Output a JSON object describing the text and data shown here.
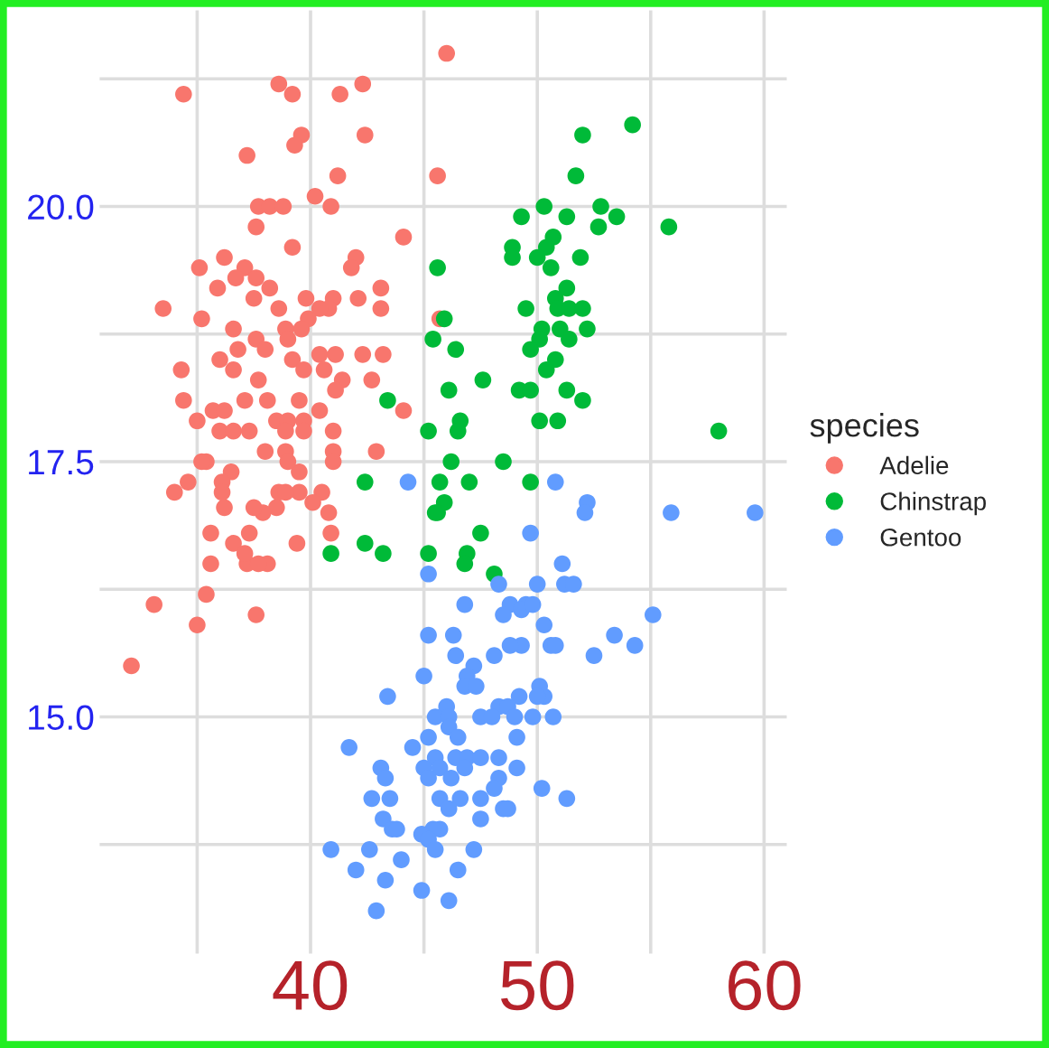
{
  "chart_data": {
    "type": "scatter",
    "legend_title": "species",
    "legend": "right",
    "marker": "circle",
    "grid": true,
    "xlim": [
      30.7,
      61.0
    ],
    "ylim": [
      12.68,
      21.92
    ],
    "xticks": [
      {
        "value": 35,
        "label": null
      },
      40,
      {
        "value": 45,
        "label": null
      },
      50,
      {
        "value": 55,
        "label": null
      },
      60
    ],
    "yticks": [
      {
        "value": 13.75,
        "label": null
      },
      {
        "value": 15,
        "label": "15.0"
      },
      {
        "value": 16.25,
        "label": null
      },
      {
        "value": 17.5,
        "label": "17.5"
      },
      {
        "value": 18.75,
        "label": null
      },
      {
        "value": 20,
        "label": "20.0"
      },
      {
        "value": 21.25,
        "label": null
      }
    ],
    "series": [
      {
        "name": "Adelie",
        "color": "#f8766d",
        "x": [
          46.0,
          34.4,
          38.6,
          39.2,
          41.3,
          42.3,
          42.4,
          39.6,
          39.3,
          37.2,
          41.2,
          45.6,
          40.2,
          37.7,
          38.2,
          38.8,
          40.9,
          37.6,
          39.2,
          44.1,
          35.1,
          36.2,
          37.1,
          36.7,
          37.6,
          38.2,
          35.9,
          37.5,
          42.0,
          41.8,
          43.1,
          42.1,
          43.1,
          33.5,
          35.2,
          38.6,
          39.8,
          41.0,
          40.8,
          40.4,
          39.9,
          39.6,
          36.6,
          38.9,
          37.6,
          39.0,
          38.0,
          36.8,
          40.4,
          41.1,
          42.3,
          43.2,
          34.3,
          36.0,
          36.6,
          39.2,
          39.7,
          40.6,
          41.4,
          42.7,
          37.7,
          34.4,
          35.7,
          36.2,
          37.1,
          38.1,
          39.5,
          41.1,
          44.1,
          35.0,
          36.0,
          36.6,
          37.3,
          38.5,
          39.0,
          39.7,
          40.4,
          38.9,
          39.7,
          41.0,
          35.4,
          38.0,
          38.9,
          41.0,
          42.9,
          39.5,
          41.0,
          45.7,
          37.6,
          38.1,
          37.2,
          39.4,
          40.9,
          38.6,
          39.5,
          40.5,
          40.1,
          40.8,
          38.5,
          37.9,
          37.3,
          39.0,
          32.1,
          33.1,
          35.0,
          35.4,
          35.6,
          34.0,
          34.6,
          35.6,
          36.2,
          36.6,
          37.1,
          37.7,
          36.5,
          35.2,
          36.1,
          36.1,
          37.5,
          38.9
        ],
        "values": [
          21.5,
          21.1,
          21.2,
          21.1,
          21.1,
          21.2,
          20.7,
          20.7,
          20.6,
          20.5,
          20.3,
          20.3,
          20.1,
          20.0,
          20.0,
          20.0,
          20.0,
          19.8,
          19.6,
          19.7,
          19.4,
          19.5,
          19.4,
          19.3,
          19.3,
          19.2,
          19.2,
          19.1,
          19.5,
          19.4,
          19.2,
          19.1,
          19.0,
          19.0,
          18.9,
          19.0,
          19.1,
          19.1,
          19.0,
          19.0,
          18.9,
          18.8,
          18.8,
          18.8,
          18.7,
          18.7,
          18.6,
          18.6,
          18.55,
          18.55,
          18.55,
          18.55,
          18.4,
          18.5,
          18.4,
          18.5,
          18.4,
          18.4,
          18.3,
          18.3,
          18.3,
          18.1,
          18.0,
          18.0,
          18.1,
          18.1,
          18.1,
          18.2,
          18.0,
          17.9,
          17.8,
          17.8,
          17.8,
          17.9,
          17.9,
          17.9,
          18.0,
          17.8,
          17.8,
          17.8,
          17.5,
          17.6,
          17.6,
          17.6,
          17.6,
          17.4,
          17.5,
          18.9,
          16.0,
          16.5,
          16.5,
          16.7,
          16.8,
          17.2,
          17.2,
          17.2,
          17.1,
          17.0,
          17.05,
          17.0,
          16.8,
          17.5,
          15.5,
          16.1,
          15.9,
          16.2,
          16.5,
          17.2,
          17.3,
          16.8,
          17.05,
          16.7,
          16.6,
          16.5,
          17.4,
          17.5,
          17.3,
          17.2,
          17.05,
          17.2
        ]
      },
      {
        "name": "Chinstrap",
        "color": "#00ba38",
        "x": [
          54.2,
          52.0,
          51.7,
          50.3,
          49.3,
          51.3,
          52.8,
          53.5,
          52.7,
          55.8,
          45.6,
          48.9,
          48.9,
          50.7,
          50.4,
          50.0,
          51.9,
          50.6,
          51.3,
          50.8,
          50.9,
          51.4,
          52.0,
          49.5,
          50.2,
          50.1,
          51.0,
          51.4,
          52.2,
          49.7,
          50.8,
          50.4,
          45.9,
          45.4,
          46.4,
          47.6,
          46.1,
          43.4,
          49.2,
          49.7,
          51.3,
          52.0,
          46.6,
          46.5,
          45.2,
          50.1,
          50.9,
          58.0,
          46.2,
          48.5,
          42.4,
          45.7,
          47.0,
          49.7,
          45.9,
          45.6,
          45.5,
          42.4,
          43.2,
          45.2,
          46.9,
          46.8,
          47.5,
          48.1,
          40.9
        ],
        "values": [
          20.8,
          20.7,
          20.3,
          20.0,
          19.9,
          19.9,
          20.0,
          19.9,
          19.8,
          19.8,
          19.4,
          19.6,
          19.5,
          19.7,
          19.6,
          19.5,
          19.5,
          19.4,
          19.2,
          19.1,
          19.0,
          19.0,
          19.0,
          19.0,
          18.8,
          18.7,
          18.8,
          18.7,
          18.8,
          18.6,
          18.5,
          18.4,
          18.9,
          18.7,
          18.6,
          18.3,
          18.2,
          18.1,
          18.2,
          18.2,
          18.2,
          18.1,
          17.9,
          17.8,
          17.8,
          17.9,
          17.9,
          17.8,
          17.5,
          17.5,
          17.3,
          17.3,
          17.3,
          17.3,
          17.1,
          17.0,
          17.0,
          16.7,
          16.6,
          16.6,
          16.6,
          16.5,
          16.8,
          16.4,
          16.6
        ]
      },
      {
        "name": "Gentoo",
        "color": "#619cff",
        "x": [
          44.3,
          50.8,
          52.2,
          52.1,
          55.9,
          59.6,
          49.7,
          51.1,
          45.2,
          51.2,
          51.6,
          50.0,
          48.3,
          55.1,
          48.8,
          49.5,
          49.3,
          49.8,
          46.8,
          48.5,
          50.3,
          50.6,
          50.8,
          49.3,
          48.8,
          48.1,
          53.4,
          54.3,
          52.5,
          45.2,
          46.3,
          46.4,
          47.2,
          46.9,
          45.0,
          46.8,
          47.3,
          50.1,
          50.3,
          50.0,
          43.4,
          49.2,
          46.0,
          48.3,
          48.7,
          45.5,
          46.1,
          47.5,
          48.0,
          49.0,
          49.8,
          50.7,
          46.1,
          46.5,
          45.2,
          49.1,
          41.7,
          44.5,
          45.5,
          45.0,
          45.7,
          46.4,
          46.9,
          47.5,
          46.8,
          46.2,
          45.2,
          48.3,
          49.1,
          48.3,
          43.1,
          43.3,
          48.1,
          50.2,
          51.3,
          42.7,
          43.5,
          45.7,
          46.6,
          47.5,
          46.1,
          48.5,
          48.7,
          43.2,
          43.6,
          43.8,
          47.5,
          45.7,
          45.4,
          44.9,
          45.2,
          45.5,
          40.9,
          42.6,
          47.2,
          44.0,
          42.0,
          46.5,
          43.3,
          44.9,
          46.1,
          42.9
        ],
        "values": [
          17.3,
          17.3,
          17.1,
          17.0,
          17.0,
          17.0,
          16.8,
          16.5,
          16.4,
          16.3,
          16.3,
          16.3,
          16.3,
          16.0,
          16.1,
          16.1,
          16.05,
          16.1,
          16.1,
          16.0,
          15.9,
          15.7,
          15.7,
          15.7,
          15.7,
          15.6,
          15.8,
          15.7,
          15.6,
          15.8,
          15.8,
          15.6,
          15.5,
          15.4,
          15.4,
          15.3,
          15.3,
          15.3,
          15.2,
          15.2,
          15.2,
          15.2,
          15.1,
          15.1,
          15.1,
          15.0,
          15.0,
          15.0,
          15.0,
          15.0,
          15.0,
          15.0,
          14.9,
          14.8,
          14.8,
          14.8,
          14.7,
          14.7,
          14.6,
          14.5,
          14.5,
          14.6,
          14.6,
          14.6,
          14.5,
          14.4,
          14.4,
          14.6,
          14.5,
          14.4,
          14.5,
          14.4,
          14.3,
          14.3,
          14.2,
          14.2,
          14.2,
          14.2,
          14.2,
          14.2,
          14.1,
          14.1,
          14.1,
          14.0,
          13.9,
          13.9,
          14.0,
          13.9,
          13.9,
          13.85,
          13.8,
          13.7,
          13.7,
          13.7,
          13.7,
          13.6,
          13.5,
          13.5,
          13.4,
          13.3,
          13.2,
          13.1
        ]
      }
    ]
  }
}
